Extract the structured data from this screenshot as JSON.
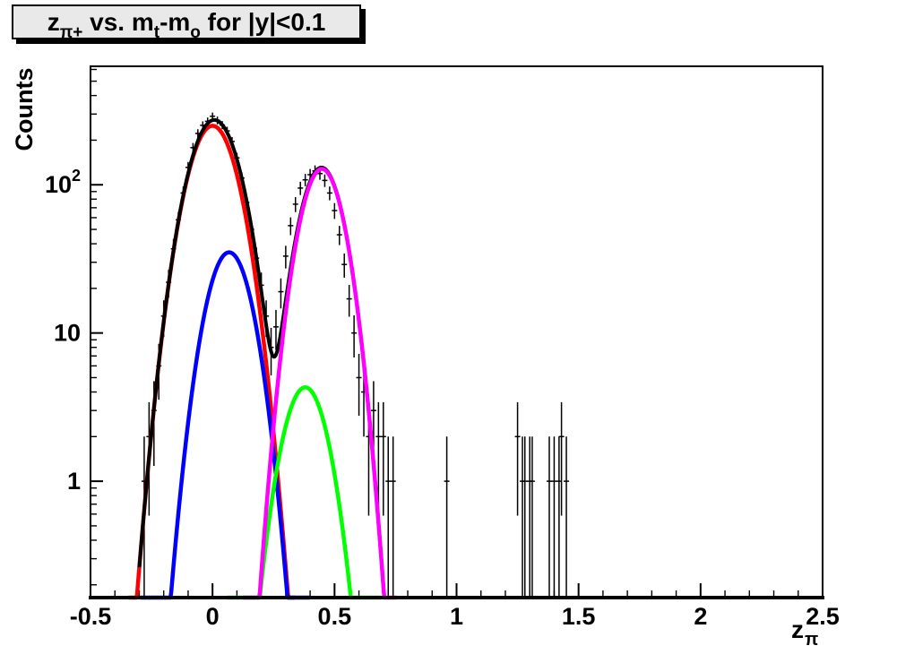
{
  "title": {
    "rich": [
      [
        "z",
        0
      ],
      [
        "π+",
        1
      ],
      [
        " vs. m",
        0
      ],
      [
        "t",
        1
      ],
      [
        "-m",
        0
      ],
      [
        "o",
        1
      ],
      [
        " for |y|<0.1",
        0
      ]
    ]
  },
  "x_axis": {
    "label_rich": [
      [
        "z",
        0
      ],
      [
        "π",
        1
      ]
    ],
    "min": -0.5,
    "max": 2.5,
    "major_ticks": [
      {
        "value": -0.5,
        "label": "-0.5"
      },
      {
        "value": 0,
        "label": "0"
      },
      {
        "value": 0.5,
        "label": "0.5"
      },
      {
        "value": 1,
        "label": "1"
      },
      {
        "value": 1.5,
        "label": "1.5"
      },
      {
        "value": 2,
        "label": "2"
      },
      {
        "value": 2.5,
        "label": "2.5"
      }
    ],
    "minor_step": 0.1
  },
  "y_axis": {
    "label": "Counts",
    "scale": "log",
    "min": 0.164,
    "max": 630,
    "major_ticks": [
      {
        "value": 1,
        "label": "1"
      },
      {
        "value": 10,
        "label": "10"
      },
      {
        "value": 100,
        "label": "10",
        "exponent": "2"
      }
    ]
  },
  "chart_data": {
    "type": "scatter",
    "description": "Histogram counts with Poisson error bars and Gaussian fit components on a log-y scale",
    "grid": false,
    "legend": null,
    "point_color": "#000000",
    "x_bin_halfwidth": 0.011,
    "points": [
      [
        -0.28,
        1
      ],
      [
        -0.26,
        2
      ],
      [
        -0.24,
        3
      ],
      [
        -0.22,
        6
      ],
      [
        -0.2,
        13
      ],
      [
        -0.18,
        22
      ],
      [
        -0.16,
        37
      ],
      [
        -0.14,
        58
      ],
      [
        -0.12,
        88
      ],
      [
        -0.1,
        131
      ],
      [
        -0.08,
        178
      ],
      [
        -0.06,
        222
      ],
      [
        -0.04,
        252
      ],
      [
        -0.02,
        268
      ],
      [
        0.0,
        290
      ],
      [
        0.02,
        272
      ],
      [
        0.04,
        253
      ],
      [
        0.06,
        231
      ],
      [
        0.08,
        196
      ],
      [
        0.1,
        152
      ],
      [
        0.12,
        111
      ],
      [
        0.14,
        76
      ],
      [
        0.16,
        50
      ],
      [
        0.18,
        32
      ],
      [
        0.2,
        21
      ],
      [
        0.22,
        13
      ],
      [
        0.24,
        8
      ],
      [
        0.26,
        11
      ],
      [
        0.28,
        19
      ],
      [
        0.3,
        33
      ],
      [
        0.32,
        53
      ],
      [
        0.34,
        74
      ],
      [
        0.36,
        95
      ],
      [
        0.38,
        108
      ],
      [
        0.4,
        117
      ],
      [
        0.42,
        124
      ],
      [
        0.44,
        119
      ],
      [
        0.46,
        107
      ],
      [
        0.48,
        88
      ],
      [
        0.5,
        67
      ],
      [
        0.52,
        46
      ],
      [
        0.54,
        29
      ],
      [
        0.56,
        17
      ],
      [
        0.58,
        10
      ],
      [
        0.6,
        5
      ],
      [
        0.62,
        4
      ],
      [
        0.64,
        2
      ],
      [
        0.66,
        3
      ],
      [
        0.68,
        2
      ],
      [
        0.7,
        2
      ],
      [
        0.72,
        1
      ],
      [
        0.74,
        1
      ],
      [
        0.96,
        1
      ],
      [
        1.25,
        2
      ],
      [
        1.27,
        1
      ],
      [
        1.28,
        1
      ],
      [
        1.3,
        1
      ],
      [
        1.31,
        1
      ],
      [
        1.38,
        1
      ],
      [
        1.4,
        1
      ],
      [
        1.42,
        1
      ],
      [
        1.43,
        2
      ],
      [
        1.45,
        1
      ]
    ],
    "curves": [
      {
        "name": "fit-red",
        "color": "#ff0000",
        "amplitude": 250,
        "mean": 0.0,
        "sigma": 0.081,
        "range": [
          -0.345,
          0.34
        ],
        "width": 4.5
      },
      {
        "name": "fit-blue",
        "color": "#0000ff",
        "amplitude": 35,
        "mean": 0.068,
        "sigma": 0.073,
        "range": [
          -0.295,
          0.4
        ],
        "width": 4.5
      },
      {
        "name": "fit-green",
        "color": "#00ff00",
        "amplitude": 4.3,
        "mean": 0.38,
        "sigma": 0.073,
        "range": [
          0.06,
          0.69
        ],
        "width": 4.5
      },
      {
        "name": "fit-total-black",
        "color": "#000000",
        "type": "sum",
        "range": [
          -0.3,
          0.755
        ],
        "width": 4
      },
      {
        "name": "fit-magenta",
        "color": "#ff00ff",
        "amplitude": 128,
        "mean": 0.448,
        "sigma": 0.07,
        "range": [
          0.125,
          0.755
        ],
        "width": 4.5
      }
    ]
  },
  "colors": {
    "frame": "#000000",
    "plot_background": "#ffffff",
    "title_fill": "#e9e9e9"
  }
}
